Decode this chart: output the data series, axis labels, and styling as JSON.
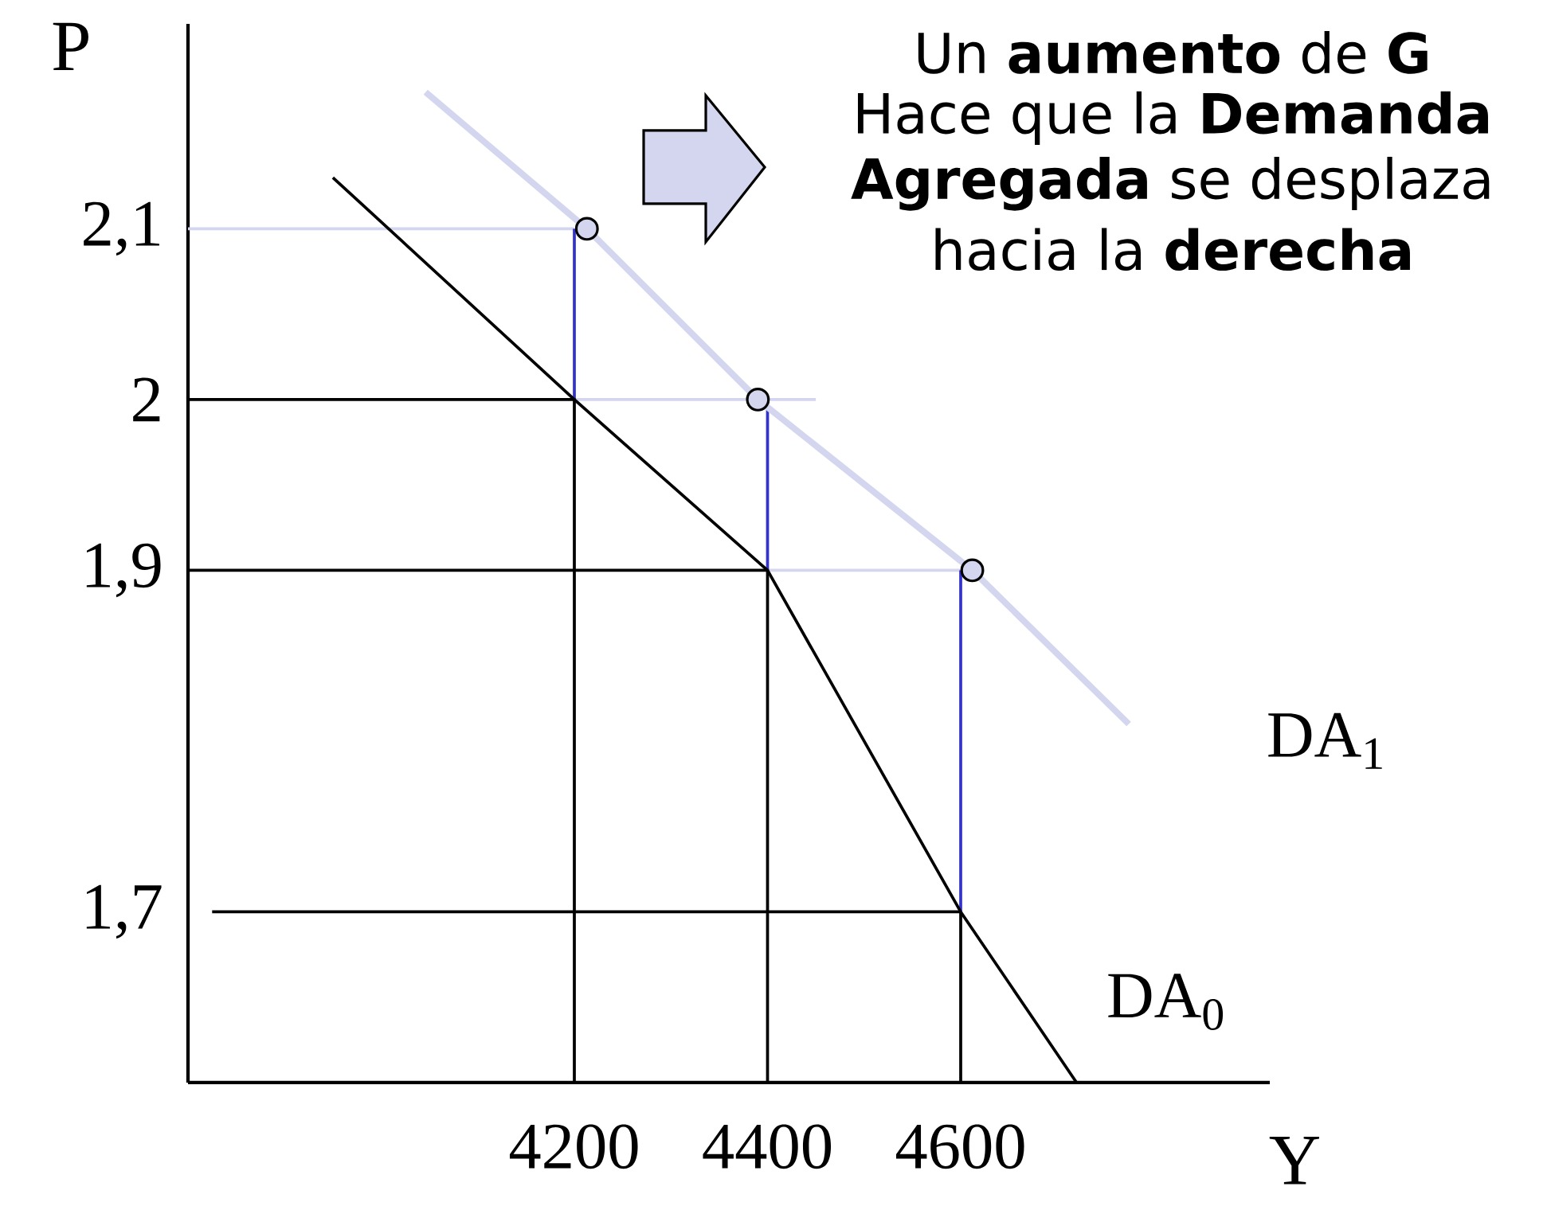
{
  "chart_data": {
    "type": "line",
    "xlabel": "Y",
    "ylabel": "P",
    "xlim": [
      3800,
      4920
    ],
    "ylim": [
      1.6,
      2.22
    ],
    "xticks": [
      4200,
      4400,
      4600
    ],
    "yticks": [
      {
        "value": 1.7,
        "label": "1,7"
      },
      {
        "value": 1.9,
        "label": "1,9"
      },
      2,
      {
        "value": 2.1,
        "label": "2,1"
      }
    ],
    "annotations": [
      "Un **aumento** de **G**",
      "Hace que la **Demanda**",
      "**Agregada** se desplaza",
      "hacia la **derecha**"
    ],
    "series": [
      {
        "color": "#d4d6f0",
        "x": [
          3800,
          4200
        ],
        "values": [
          2.1,
          2.1
        ]
      },
      {
        "color": "#d4d6f0",
        "x": [
          4200,
          4450
        ],
        "values": [
          2,
          2
        ]
      },
      {
        "color": "#d4d6f0",
        "x": [
          4400,
          4610
        ],
        "values": [
          1.9,
          1.9
        ]
      },
      {
        "color": "#3333cc",
        "x": [
          4200,
          4200
        ],
        "values": [
          2,
          2.1
        ]
      },
      {
        "color": "#3333cc",
        "x": [
          4400,
          4400
        ],
        "values": [
          1.9,
          2
        ]
      },
      {
        "color": "#3333cc",
        "x": [
          4600,
          4600
        ],
        "values": [
          1.7,
          1.9
        ]
      },
      {
        "color": "#000000",
        "x": [
          3800,
          4200,
          4200
        ],
        "values": [
          2,
          2,
          1.6
        ]
      },
      {
        "color": "#000000",
        "x": [
          3800,
          4400,
          4400
        ],
        "values": [
          1.9,
          1.9,
          1.6
        ]
      },
      {
        "color": "#000000",
        "x": [
          3825,
          4600,
          4600
        ],
        "values": [
          1.7,
          1.7,
          1.6
        ]
      },
      {
        "name": "DA$_{0}$",
        "color": "#000000",
        "x": [
          3950,
          4200,
          4400,
          4600,
          4720
        ],
        "values": [
          2.13,
          2,
          1.9,
          1.7,
          1.6
        ]
      },
      {
        "name": "DA$_{1}$",
        "color": "#d4d6f0",
        "x": [
          4046,
          4213,
          4390,
          4612,
          4774
        ],
        "values": [
          2.18,
          2.1,
          2,
          1.9,
          1.81
        ]
      },
      {
        "type": "scatter",
        "marker": "circle",
        "color": "#d4d6f0",
        "x": [
          4213,
          4390,
          4612
        ],
        "values": [
          2.1,
          2,
          1.9
        ]
      }
    ]
  }
}
